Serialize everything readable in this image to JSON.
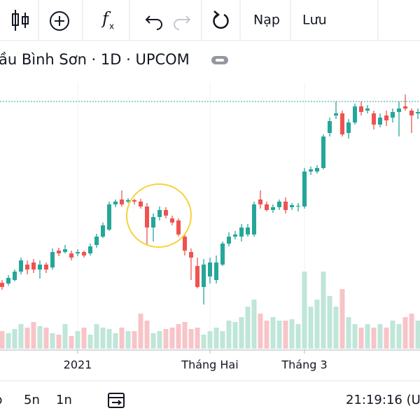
{
  "toolbar": {
    "load": "Nạp",
    "save": "Lưu"
  },
  "symbol_line": "ầu Bình Sơn · 1D · UPCOM",
  "bottom_bar": {
    "ranges": [
      "p",
      "5n",
      "1n"
    ],
    "clock": "21:19:16 (U"
  },
  "chart_data": {
    "type": "candlestick",
    "categories": [
      null,
      null,
      null,
      null,
      null,
      null,
      null,
      null,
      null,
      null,
      null,
      null,
      "2021",
      null,
      null,
      null,
      null,
      null,
      null,
      null,
      null,
      null,
      null,
      null,
      null,
      null,
      null,
      null,
      null,
      null,
      null,
      null,
      null,
      "Tháng Hai",
      null,
      null,
      null,
      null,
      null,
      null,
      null,
      null,
      null,
      null,
      null,
      null,
      null,
      null,
      "Tháng 3",
      null,
      null,
      null,
      null,
      null,
      null,
      null,
      null,
      null,
      null,
      null,
      null,
      null,
      null,
      null,
      null,
      null,
      null
    ],
    "open": [
      96,
      95,
      100,
      112,
      122,
      125,
      115,
      122,
      118,
      142,
      140,
      138,
      138,
      140,
      138,
      150,
      162,
      172,
      208,
      215,
      212,
      214,
      212,
      205,
      175,
      190,
      200,
      188,
      185,
      162,
      140,
      120,
      90,
      105,
      100,
      122,
      152,
      162,
      162,
      165,
      165,
      215,
      208,
      200,
      204,
      212,
      204,
      205,
      205,
      255,
      255,
      260,
      310,
      335,
      338,
      310,
      325,
      348,
      342,
      338,
      322,
      335,
      332,
      340,
      348,
      342,
      338
    ],
    "high": [
      100,
      107,
      115,
      132,
      128,
      130,
      128,
      125,
      145,
      146,
      150,
      142,
      144,
      142,
      152,
      166,
      182,
      212,
      215,
      228,
      217,
      216,
      216,
      210,
      195,
      205,
      204,
      192,
      188,
      165,
      145,
      132,
      130,
      132,
      135,
      155,
      168,
      170,
      180,
      180,
      212,
      228,
      212,
      208,
      215,
      218,
      210,
      210,
      260,
      262,
      264,
      308,
      332,
      355,
      342,
      330,
      352,
      355,
      350,
      342,
      338,
      342,
      345,
      355,
      365,
      345,
      345
    ],
    "low": [
      86,
      92,
      98,
      108,
      108,
      110,
      102,
      110,
      115,
      134,
      138,
      128,
      134,
      132,
      135,
      146,
      160,
      170,
      204,
      205,
      210,
      208,
      202,
      150,
      155,
      185,
      188,
      178,
      162,
      135,
      100,
      88,
      65,
      95,
      95,
      120,
      148,
      158,
      155,
      162,
      162,
      202,
      198,
      196,
      200,
      195,
      200,
      198,
      202,
      250,
      252,
      258,
      305,
      330,
      305,
      302,
      322,
      335,
      338,
      315,
      318,
      320,
      325,
      305,
      342,
      310,
      330
    ],
    "close": [
      90,
      103,
      112,
      128,
      115,
      115,
      122,
      115,
      140,
      138,
      144,
      132,
      140,
      135,
      148,
      162,
      178,
      208,
      212,
      208,
      214,
      212,
      205,
      175,
      190,
      200,
      192,
      182,
      165,
      142,
      132,
      90,
      122,
      125,
      125,
      152,
      162,
      165,
      175,
      175,
      208,
      208,
      200,
      204,
      212,
      200,
      207,
      206,
      255,
      258,
      260,
      305,
      327,
      338,
      308,
      325,
      348,
      340,
      345,
      322,
      332,
      328,
      340,
      345,
      345,
      335,
      340
    ],
    "volume": [
      25,
      22,
      28,
      35,
      30,
      38,
      32,
      30,
      22,
      20,
      35,
      18,
      25,
      30,
      20,
      35,
      30,
      28,
      22,
      30,
      25,
      25,
      50,
      40,
      22,
      25,
      28,
      30,
      35,
      38,
      28,
      30,
      20,
      25,
      30,
      25,
      40,
      38,
      45,
      60,
      70,
      50,
      40,
      45,
      40,
      40,
      42,
      35,
      110,
      60,
      70,
      110,
      75,
      60,
      85,
      45,
      35,
      30,
      35,
      30,
      35,
      30,
      40,
      35,
      45,
      50,
      40
    ],
    "ylim": [
      0,
      382
    ],
    "vlim": [
      0,
      382
    ],
    "price_line": 355,
    "up_color": "#26a69a",
    "down_color": "#ef5350",
    "up_volume_color": "#bfe6d8",
    "down_volume_color": "#f7c4c8"
  }
}
